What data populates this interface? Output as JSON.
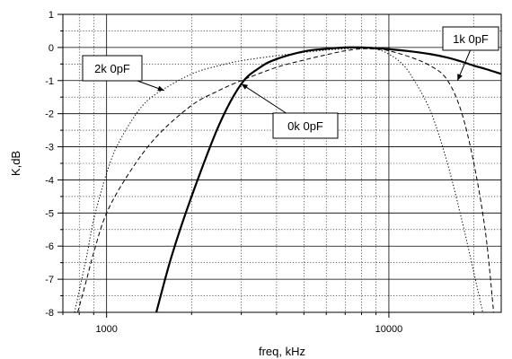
{
  "chart_data": {
    "type": "line",
    "xlabel": "freq, kHz",
    "ylabel": "K,dB",
    "x_scale": "log",
    "xlim": [
      700,
      25000
    ],
    "ylim": [
      -8,
      1
    ],
    "x_tick_labels": [
      {
        "value": 1000,
        "label": "1000"
      },
      {
        "value": 10000,
        "label": "10000"
      }
    ],
    "y_ticks": [
      1,
      0,
      -1,
      -2,
      -3,
      -4,
      -5,
      -6,
      -7,
      -8
    ],
    "y_tick_labels": [
      "1",
      "0",
      "-1",
      "-2",
      "-3",
      "-4",
      "-5",
      "-6",
      "-7",
      "-8"
    ],
    "grid": true,
    "series": [
      {
        "name": "0k 0pF",
        "style": "solid",
        "x": [
          1500,
          1700,
          2000,
          2500,
          3000,
          3500,
          4000,
          5000,
          6000,
          7000,
          8000,
          9000,
          10000,
          12000,
          14000,
          16000,
          18000,
          20000,
          22000,
          25000
        ],
        "y": [
          -8.0,
          -6.3,
          -4.5,
          -2.35,
          -1.1,
          -0.6,
          -0.35,
          -0.12,
          -0.04,
          0.0,
          0.0,
          -0.02,
          -0.05,
          -0.12,
          -0.2,
          -0.3,
          -0.42,
          -0.55,
          -0.65,
          -0.8
        ]
      },
      {
        "name": "1k 0pF",
        "style": "dashed",
        "x": [
          790,
          850,
          900,
          1000,
          1200,
          1500,
          2000,
          2500,
          3000,
          4000,
          5000,
          6000,
          7000,
          8000,
          9000,
          10000,
          12000,
          14000,
          16000,
          18000,
          20000,
          22000,
          23500
        ],
        "y": [
          -8.0,
          -7.0,
          -6.2,
          -5.0,
          -3.8,
          -2.7,
          -1.75,
          -1.3,
          -1.0,
          -0.6,
          -0.38,
          -0.22,
          -0.1,
          -0.04,
          -0.05,
          -0.1,
          -0.3,
          -0.55,
          -0.95,
          -1.9,
          -3.5,
          -5.6,
          -8.0
        ]
      },
      {
        "name": "2k 0pF",
        "style": "dotted",
        "x": [
          770,
          850,
          900,
          1000,
          1100,
          1300,
          1500,
          2000,
          2500,
          3000,
          4000,
          5000,
          6000,
          7000,
          8000,
          9000,
          10000,
          11000,
          12000,
          14000,
          16000,
          18000,
          20000,
          21500
        ],
        "y": [
          -8.0,
          -6.3,
          -5.2,
          -3.8,
          -2.9,
          -1.9,
          -1.4,
          -0.8,
          -0.55,
          -0.4,
          -0.25,
          -0.15,
          -0.08,
          -0.04,
          -0.02,
          -0.05,
          -0.2,
          -0.45,
          -0.85,
          -1.9,
          -3.4,
          -5.1,
          -6.8,
          -8.0
        ]
      }
    ],
    "annotations": [
      {
        "text": "2k 0pF",
        "points_to": {
          "x": 1600,
          "y": -1.3
        }
      },
      {
        "text": "0k 0pF",
        "points_to": {
          "x": 3000,
          "y": -1.1
        }
      },
      {
        "text": "1k 0pF",
        "points_to": {
          "x": 17500,
          "y": -1.0
        }
      }
    ]
  }
}
